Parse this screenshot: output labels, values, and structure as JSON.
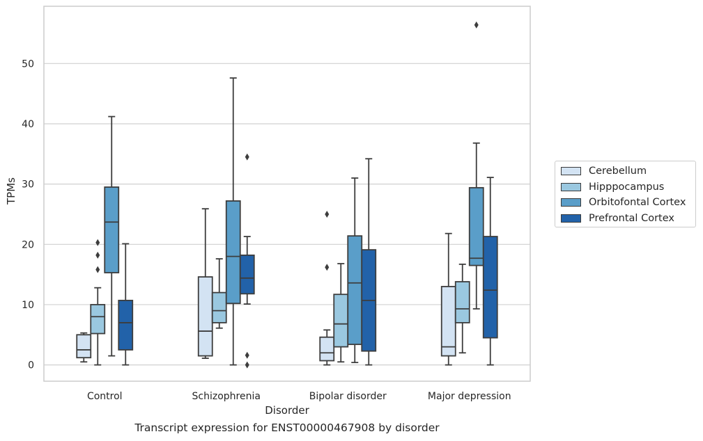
{
  "chart_data": {
    "type": "boxplot",
    "xlabel": "Disorder",
    "ylabel": "TPMs",
    "caption": "Transcript expression for ENST00000467908 by disorder",
    "ylim": [
      -2.7,
      59.5
    ],
    "yticks": [
      0,
      10,
      20,
      30,
      40,
      50
    ],
    "grid": "y",
    "legend_position": "right",
    "categories": [
      "Control",
      "Schizophrenia",
      "Bipolar disorder",
      "Major depression"
    ],
    "series": [
      {
        "name": "Cerebellum",
        "color": "#d3e3f3",
        "boxes": [
          {
            "whisker_low": 0.5,
            "q1": 1.2,
            "median": 2.5,
            "q3": 5.0,
            "whisker_high": 5.3,
            "outliers": []
          },
          {
            "whisker_low": 1.1,
            "q1": 1.5,
            "median": 5.6,
            "q3": 14.6,
            "whisker_high": 25.9,
            "outliers": []
          },
          {
            "whisker_low": 0.0,
            "q1": 0.7,
            "median": 2.0,
            "q3": 4.6,
            "whisker_high": 5.8,
            "outliers": [
              16.2,
              25.0
            ]
          },
          {
            "whisker_low": 0.0,
            "q1": 1.5,
            "median": 3.0,
            "q3": 13.0,
            "whisker_high": 21.8,
            "outliers": []
          }
        ]
      },
      {
        "name": "Hipppocampus",
        "color": "#9ac8e0",
        "boxes": [
          {
            "whisker_low": 0.0,
            "q1": 5.2,
            "median": 8.0,
            "q3": 10.0,
            "whisker_high": 12.8,
            "outliers": [
              15.8,
              18.2,
              20.3
            ]
          },
          {
            "whisker_low": 6.1,
            "q1": 7.0,
            "median": 9.0,
            "q3": 12.0,
            "whisker_high": 17.6,
            "outliers": []
          },
          {
            "whisker_low": 0.5,
            "q1": 3.0,
            "median": 6.8,
            "q3": 11.7,
            "whisker_high": 16.8,
            "outliers": []
          },
          {
            "whisker_low": 2.0,
            "q1": 7.0,
            "median": 9.3,
            "q3": 13.8,
            "whisker_high": 16.7,
            "outliers": []
          }
        ]
      },
      {
        "name": "Orbitofontal Cortex",
        "color": "#5a9ec9",
        "boxes": [
          {
            "whisker_low": 1.5,
            "q1": 15.3,
            "median": 23.7,
            "q3": 29.5,
            "whisker_high": 41.2,
            "outliers": []
          },
          {
            "whisker_low": 0.0,
            "q1": 10.2,
            "median": 18.0,
            "q3": 27.2,
            "whisker_high": 47.6,
            "outliers": []
          },
          {
            "whisker_low": 0.4,
            "q1": 3.4,
            "median": 13.6,
            "q3": 21.4,
            "whisker_high": 31.0,
            "outliers": []
          },
          {
            "whisker_low": 9.3,
            "q1": 16.5,
            "median": 17.7,
            "q3": 29.4,
            "whisker_high": 36.8,
            "outliers": [
              56.4
            ]
          }
        ]
      },
      {
        "name": "Prefrontal Cortex",
        "color": "#2262a9",
        "boxes": [
          {
            "whisker_low": 0.0,
            "q1": 2.5,
            "median": 7.0,
            "q3": 10.7,
            "whisker_high": 20.1,
            "outliers": []
          },
          {
            "whisker_low": 10.1,
            "q1": 11.8,
            "median": 14.4,
            "q3": 18.2,
            "whisker_high": 21.3,
            "outliers": [
              0.0,
              1.6,
              34.5
            ]
          },
          {
            "whisker_low": 0.0,
            "q1": 2.3,
            "median": 10.7,
            "q3": 19.1,
            "whisker_high": 34.2,
            "outliers": []
          },
          {
            "whisker_low": 0.0,
            "q1": 4.5,
            "median": 12.4,
            "q3": 21.3,
            "whisker_high": 31.1,
            "outliers": []
          }
        ]
      }
    ]
  }
}
